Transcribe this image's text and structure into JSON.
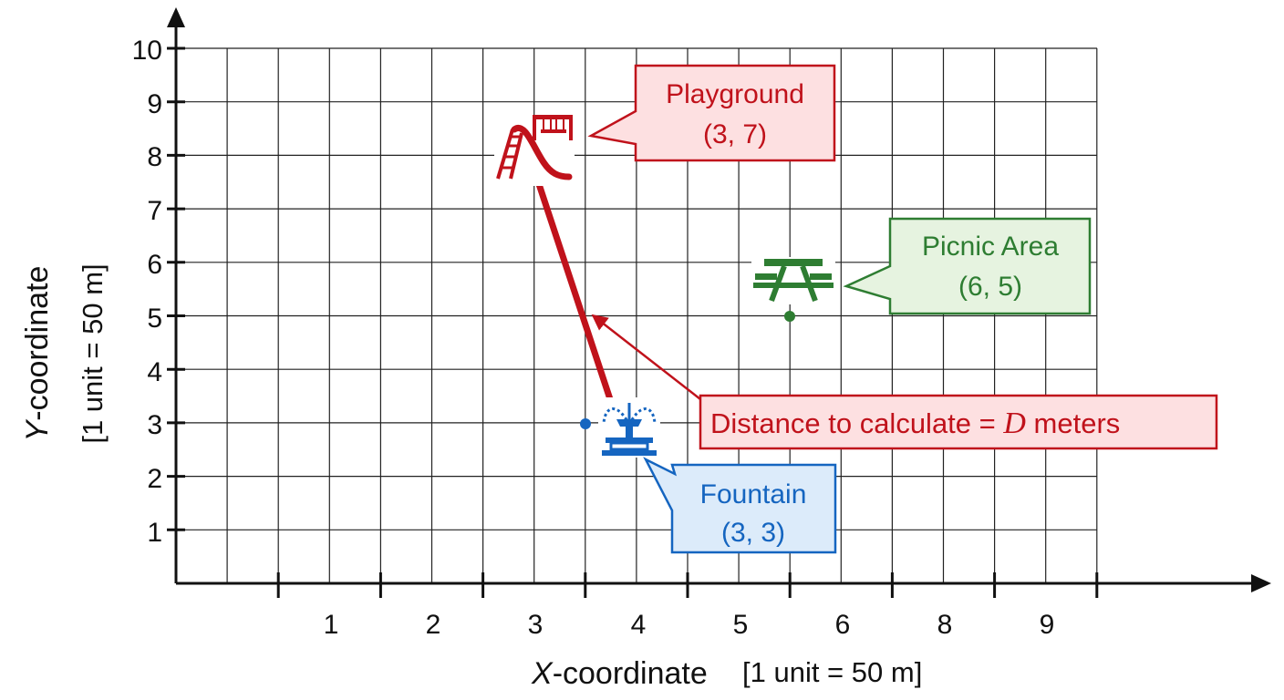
{
  "axes": {
    "y_ticks": [
      "1",
      "2",
      "3",
      "4",
      "5",
      "6",
      "7",
      "8",
      "9",
      "10"
    ],
    "x_ticks": [
      "1",
      "2",
      "3",
      "4",
      "5",
      "6",
      "8",
      "9"
    ],
    "y_title_var": "Y",
    "y_title_rest": "-coordinate",
    "y_title_unit": "[1 unit = 50 m]",
    "x_title_var": "X",
    "x_title_rest": "-coordinate",
    "x_title_unit": "[1 unit = 50 m]"
  },
  "callouts": {
    "playground": {
      "name": "Playground",
      "coords": "(3, 7)"
    },
    "picnic": {
      "name": "Picnic Area",
      "coords": "(6, 5)"
    },
    "fountain": {
      "name": "Fountain",
      "coords": "(3, 3)"
    }
  },
  "distance": {
    "prefix": "Distance to calculate = ",
    "variable": "D",
    "suffix": " meters"
  },
  "colors": {
    "red": "#c0121b",
    "red_fill": "#fde0e1",
    "green": "#2e7d32",
    "green_fill": "#e6f3e0",
    "blue": "#1565c0",
    "blue_fill": "#dcebfa",
    "grid": "#222222"
  },
  "icons": {
    "playground": "slide-swing-icon",
    "picnic": "picnic-table-icon",
    "fountain": "fountain-icon"
  }
}
